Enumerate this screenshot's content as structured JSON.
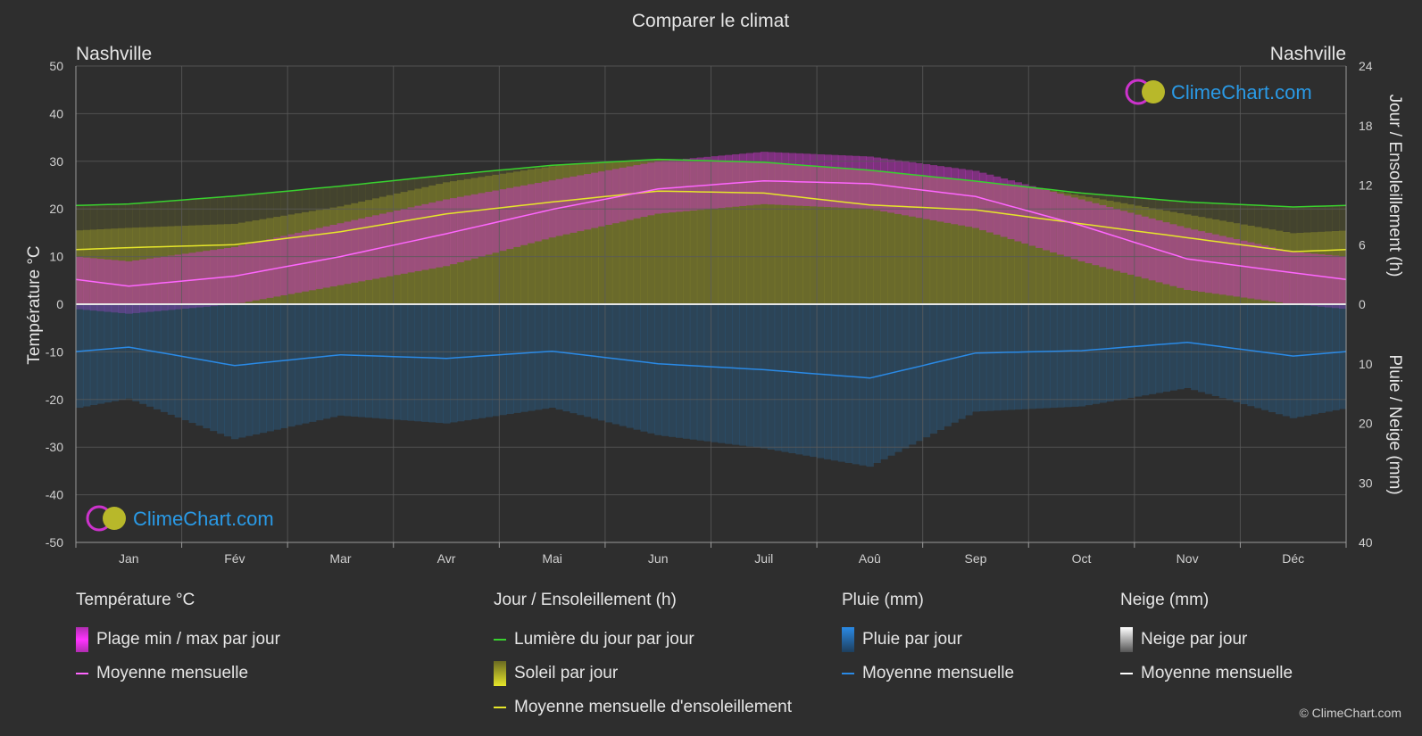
{
  "title": "Comparer le climat",
  "location_left": "Nashville",
  "location_right": "Nashville",
  "watermark": "ClimeChart.com",
  "copyright": "© ClimeChart.com",
  "colors": {
    "background": "#2e2e2e",
    "grid": "#5a5a5a",
    "daylight": "#39d12f",
    "sunshine_fill": "#8a8a2a",
    "sunshine_line": "#e6e62a",
    "temp_range": "#cc33cc",
    "temp_line": "#ff66ff",
    "rain_bar": "#2a5f8a",
    "rain_line": "#2a8ae6",
    "snow_line": "#ffffff",
    "brand": "#2a9ae6"
  },
  "chart_data": {
    "type": "line",
    "months": [
      "Jan",
      "Fév",
      "Mar",
      "Avr",
      "Mai",
      "Jun",
      "Juil",
      "Aoû",
      "Sep",
      "Oct",
      "Nov",
      "Déc"
    ],
    "y_left": {
      "label": "Température °C",
      "min": -50,
      "max": 50,
      "ticks": [
        "50",
        "40",
        "30",
        "20",
        "10",
        "0",
        "-10",
        "-20",
        "-30",
        "-40",
        "-50"
      ]
    },
    "y_right_top": {
      "label": "Jour / Ensoleillement (h)",
      "min": 0,
      "max": 24,
      "ticks": [
        "24",
        "18",
        "12",
        "6",
        "0"
      ]
    },
    "y_right_bottom": {
      "label": "Pluie / Neige (mm)",
      "min": 0,
      "max": 40,
      "ticks": [
        "10",
        "20",
        "30",
        "40"
      ]
    },
    "grid": true,
    "series": [
      {
        "name": "Lumière du jour par jour",
        "axis": "hours",
        "values": [
          10.1,
          10.9,
          11.9,
          13.0,
          14.0,
          14.6,
          14.3,
          13.5,
          12.4,
          11.2,
          10.3,
          9.8
        ]
      },
      {
        "name": "Moyenne mensuelle d'ensoleillement",
        "axis": "hours",
        "values": [
          5.7,
          6.0,
          7.3,
          9.1,
          10.3,
          11.4,
          11.2,
          10.0,
          9.5,
          8.1,
          6.7,
          5.3
        ]
      },
      {
        "name": "Moyenne mensuelle",
        "group": "temperature",
        "axis": "temp",
        "values": [
          3.8,
          5.9,
          10.0,
          14.8,
          19.9,
          24.2,
          25.9,
          25.3,
          22.6,
          16.5,
          9.5,
          6.6
        ]
      },
      {
        "name": "Moyenne mensuelle",
        "group": "rain",
        "axis": "mm",
        "values": [
          7.2,
          10.3,
          8.5,
          9.1,
          7.9,
          10.0,
          11.0,
          12.4,
          8.2,
          7.8,
          6.4,
          8.7
        ]
      },
      {
        "name": "Plage min / max par jour",
        "axis": "temp",
        "min": [
          -2,
          0,
          4,
          8,
          14,
          19,
          21,
          20,
          16,
          9,
          3,
          0
        ],
        "max": [
          9,
          12,
          17,
          22,
          26,
          30,
          32,
          31,
          28,
          22,
          16,
          11
        ]
      }
    ]
  },
  "legend": {
    "temperature": {
      "title": "Température °C",
      "items": [
        "Plage min / max par jour",
        "Moyenne mensuelle"
      ]
    },
    "sun": {
      "title": "Jour / Ensoleillement (h)",
      "items": [
        "Lumière du jour par jour",
        "Soleil par jour",
        "Moyenne mensuelle d'ensoleillement"
      ]
    },
    "rain": {
      "title": "Pluie (mm)",
      "items": [
        "Pluie par jour",
        "Moyenne mensuelle"
      ]
    },
    "snow": {
      "title": "Neige (mm)",
      "items": [
        "Neige par jour",
        "Moyenne mensuelle"
      ]
    }
  }
}
